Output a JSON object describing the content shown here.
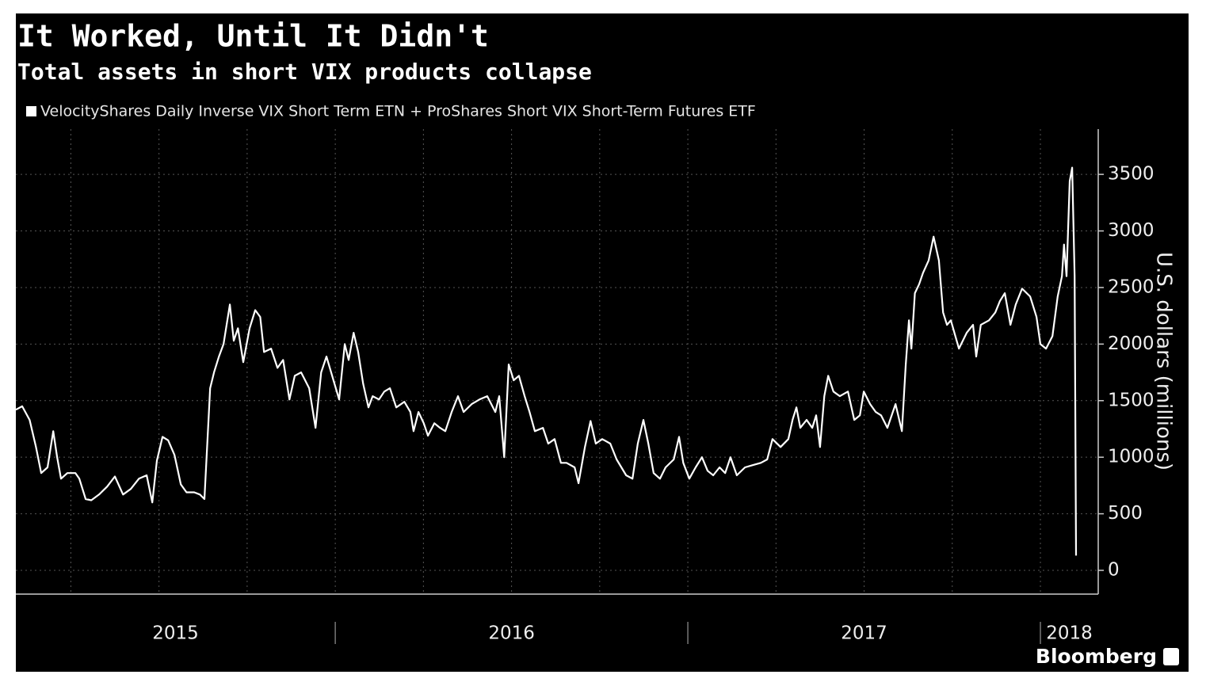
{
  "chart_data": {
    "type": "line",
    "title": "It Worked, Until It Didn't",
    "subtitle": "Total assets in short VIX products collapse",
    "y_axis_label": "U.S. dollars (millions)",
    "source": "Bloomberg",
    "xlim": [
      2015.094,
      2018.164
    ],
    "xticks": [
      2015,
      2016,
      2017,
      2018
    ],
    "xgrid": [
      2015.25,
      2015.5,
      2015.75,
      2016.25,
      2016.5,
      2016.75,
      2017.25,
      2017.5,
      2017.75
    ],
    "ylim": [
      -210,
      3900
    ],
    "yticks": [
      0,
      500,
      1000,
      1500,
      2000,
      2500,
      3000,
      3500
    ],
    "grid": true,
    "x": [
      2015.094,
      2015.112,
      2015.133,
      2015.151,
      2015.166,
      2015.184,
      2015.2,
      2015.211,
      2015.222,
      2015.24,
      2015.263,
      2015.274,
      2015.292,
      2015.308,
      2015.33,
      2015.353,
      2015.375,
      2015.398,
      2015.42,
      2015.443,
      2015.465,
      2015.481,
      2015.494,
      2015.51,
      2015.526,
      2015.544,
      2015.562,
      2015.578,
      2015.6,
      2015.616,
      2015.629,
      2015.645,
      2015.656,
      2015.67,
      2015.683,
      2015.701,
      2015.712,
      2015.724,
      2015.739,
      2015.757,
      2015.773,
      2015.787,
      2015.798,
      2015.818,
      2015.836,
      2015.852,
      2015.87,
      2015.885,
      2015.903,
      2015.926,
      2015.944,
      2015.96,
      2015.975,
      2015.993,
      2016.011,
      2016.027,
      2016.038,
      2016.052,
      2016.065,
      2016.079,
      2016.094,
      2016.106,
      2016.124,
      2016.139,
      2016.155,
      2016.173,
      2016.196,
      2016.213,
      2016.222,
      2016.236,
      2016.251,
      2016.263,
      2016.281,
      2016.297,
      2016.312,
      2016.33,
      2016.348,
      2016.364,
      2016.387,
      2016.409,
      2016.431,
      2016.454,
      2016.465,
      2016.479,
      2016.492,
      2016.506,
      2016.521,
      2016.537,
      2016.551,
      2016.566,
      2016.589,
      2016.604,
      2016.622,
      2016.64,
      2016.656,
      2016.679,
      2016.69,
      2016.708,
      2016.724,
      2016.739,
      2016.757,
      2016.78,
      2016.798,
      2016.825,
      2016.843,
      2016.858,
      2016.874,
      2016.888,
      2016.903,
      2016.921,
      2016.937,
      2016.96,
      2016.975,
      2016.987,
      2017.004,
      2017.022,
      2017.04,
      2017.056,
      2017.072,
      2017.09,
      2017.106,
      2017.121,
      2017.139,
      2017.162,
      2017.184,
      2017.207,
      2017.225,
      2017.24,
      2017.263,
      2017.285,
      2017.297,
      2017.308,
      2017.319,
      2017.337,
      2017.353,
      2017.364,
      2017.375,
      2017.387,
      2017.398,
      2017.413,
      2017.431,
      2017.454,
      2017.472,
      2017.488,
      2017.499,
      2017.517,
      2017.533,
      2017.548,
      2017.566,
      2017.589,
      2017.607,
      2017.618,
      2017.627,
      2017.634,
      2017.644,
      2017.656,
      2017.667,
      2017.683,
      2017.697,
      2017.712,
      2017.724,
      2017.735,
      2017.746,
      2017.769,
      2017.791,
      2017.809,
      2017.818,
      2017.831,
      2017.854,
      2017.872,
      2017.885,
      2017.899,
      2017.915,
      2017.93,
      2017.948,
      2017.971,
      2017.989,
      2018.0,
      2018.016,
      2018.034,
      2018.049,
      2018.061,
      2018.067,
      2018.074,
      2018.083,
      2018.09,
      2018.097,
      2018.101
    ],
    "series": [
      {
        "name": "VelocityShares Daily Inverse VIX Short Term ETN + ProShares Short VIX Short-Term Futures ETF",
        "color": "#ffffff",
        "values": [
          1420,
          1450,
          1330,
          1090,
          860,
          910,
          1230,
          1000,
          810,
          860,
          860,
          810,
          630,
          620,
          670,
          740,
          830,
          670,
          720,
          810,
          840,
          600,
          970,
          1180,
          1150,
          1020,
          760,
          690,
          690,
          670,
          630,
          1610,
          1750,
          1890,
          2000,
          2350,
          2030,
          2140,
          1840,
          2140,
          2300,
          2240,
          1930,
          1960,
          1790,
          1860,
          1510,
          1720,
          1750,
          1610,
          1260,
          1750,
          1890,
          1700,
          1510,
          2000,
          1860,
          2100,
          1930,
          1650,
          1440,
          1540,
          1510,
          1580,
          1610,
          1440,
          1490,
          1400,
          1230,
          1400,
          1300,
          1190,
          1300,
          1260,
          1230,
          1400,
          1540,
          1400,
          1470,
          1510,
          1540,
          1400,
          1540,
          1000,
          1820,
          1680,
          1720,
          1540,
          1400,
          1230,
          1260,
          1120,
          1160,
          950,
          950,
          910,
          770,
          1090,
          1320,
          1120,
          1160,
          1120,
          980,
          840,
          810,
          1120,
          1330,
          1120,
          860,
          810,
          910,
          980,
          1180,
          950,
          810,
          910,
          1000,
          880,
          840,
          910,
          860,
          1000,
          840,
          910,
          930,
          950,
          980,
          1160,
          1090,
          1160,
          1330,
          1440,
          1260,
          1330,
          1260,
          1370,
          1090,
          1540,
          1720,
          1580,
          1540,
          1580,
          1330,
          1370,
          1580,
          1470,
          1400,
          1370,
          1260,
          1470,
          1230,
          1820,
          2210,
          1960,
          2450,
          2530,
          2630,
          2740,
          2950,
          2740,
          2280,
          2170,
          2210,
          1960,
          2100,
          2170,
          1890,
          2170,
          2210,
          2280,
          2380,
          2450,
          2170,
          2350,
          2490,
          2420,
          2240,
          2000,
          1960,
          2070,
          2420,
          2600,
          2880,
          2600,
          3440,
          3560,
          2600,
          130
        ]
      }
    ]
  }
}
